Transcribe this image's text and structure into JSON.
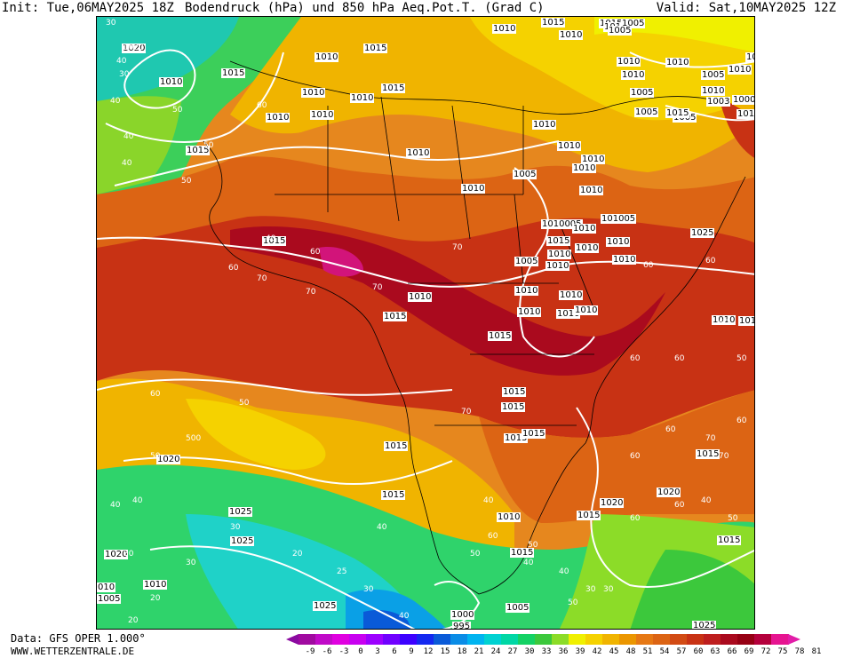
{
  "header": {
    "init": "Init: Tue,06MAY2025 18Z",
    "title": "Bodendruck (hPa) und 850 hPa Aeq.Pot.T. (Grad C)",
    "valid": "Valid: Sat,10MAY2025 12Z"
  },
  "footer": {
    "source": "Data: GFS OPER 1.000°",
    "site": "WWW.WETTERZENTRALE.DE"
  },
  "legend": {
    "arrow_left_color": "#8b0aa0",
    "arrow_right_color": "#e21da8",
    "colors": [
      "#a00aa0",
      "#c00ac8",
      "#e000e0",
      "#c800f0",
      "#9c00ff",
      "#7000ff",
      "#3c00ff",
      "#1428f0",
      "#0a5ad8",
      "#0a8ce6",
      "#00b4f0",
      "#00d2d2",
      "#00d7a5",
      "#14d264",
      "#3cc83c",
      "#8cdc28",
      "#f0f000",
      "#f5d200",
      "#f0b400",
      "#eb9600",
      "#e67814",
      "#dc6414",
      "#d24b14",
      "#c83214",
      "#be1e1e",
      "#aa0a1e",
      "#960014",
      "#b4003c",
      "#e61490"
    ],
    "ticks": [
      "-9",
      "-6",
      "-3",
      "0",
      "3",
      "6",
      "9",
      "12",
      "15",
      "18",
      "21",
      "24",
      "27",
      "30",
      "33",
      "36",
      "39",
      "42",
      "45",
      "48",
      "51",
      "54",
      "57",
      "60",
      "63",
      "66",
      "69",
      "72",
      "75",
      "78",
      "81"
    ]
  },
  "map": {
    "pressure_labels": [
      {
        "t": "1020"
      },
      {
        "t": "1010"
      },
      {
        "t": "1015"
      },
      {
        "t": "1015"
      },
      {
        "t": "1010"
      },
      {
        "t": "1010"
      },
      {
        "t": "1010"
      },
      {
        "t": "1010"
      },
      {
        "t": "1015"
      },
      {
        "t": "1015"
      },
      {
        "t": "1010"
      },
      {
        "t": "1015"
      },
      {
        "t": "1015"
      },
      {
        "t": "1015"
      },
      {
        "t": "1010"
      },
      {
        "t": "1010"
      },
      {
        "t": "1010"
      },
      {
        "t": "1005"
      },
      {
        "t": "1010"
      },
      {
        "t": "1005"
      },
      {
        "t": "1010"
      },
      {
        "t": "1005"
      },
      {
        "t": "1010"
      },
      {
        "t": "1003"
      },
      {
        "t": "1000"
      },
      {
        "t": "1005"
      },
      {
        "t": "1005"
      },
      {
        "t": "1015"
      },
      {
        "t": "1010"
      },
      {
        "t": "1010"
      },
      {
        "t": "1010"
      },
      {
        "t": "1010"
      },
      {
        "t": "1010"
      },
      {
        "t": "1005"
      },
      {
        "t": "1010"
      },
      {
        "t": "1010"
      },
      {
        "t": "1010"
      },
      {
        "t": "1010"
      },
      {
        "t": "1010005"
      },
      {
        "t": "1010"
      },
      {
        "t": "1015"
      },
      {
        "t": "1010"
      },
      {
        "t": "1010"
      },
      {
        "t": "1005"
      },
      {
        "t": "1010"
      },
      {
        "t": "1010"
      },
      {
        "t": "1010"
      },
      {
        "t": "1010"
      },
      {
        "t": "1010"
      },
      {
        "t": "1010"
      },
      {
        "t": "1015"
      },
      {
        "t": "1010"
      },
      {
        "t": "1015"
      },
      {
        "t": "1015"
      },
      {
        "t": "1015"
      },
      {
        "t": "1015"
      },
      {
        "t": "1015"
      },
      {
        "t": "1015"
      },
      {
        "t": "1015"
      },
      {
        "t": "1010"
      },
      {
        "t": "1015"
      },
      {
        "t": "1020"
      },
      {
        "t": "1020"
      },
      {
        "t": "1025"
      },
      {
        "t": "1015"
      },
      {
        "t": "1020"
      },
      {
        "t": "1010"
      },
      {
        "t": "1025"
      },
      {
        "t": "1015"
      },
      {
        "t": "1025"
      },
      {
        "t": "1020"
      },
      {
        "t": "1005"
      },
      {
        "t": "1015"
      },
      {
        "t": "1025"
      },
      {
        "t": "1000"
      },
      {
        "t": "995"
      },
      {
        "t": "1005"
      },
      {
        "t": "1005"
      },
      {
        "t": "010"
      },
      {
        "t": "1005"
      },
      {
        "t": "1025"
      },
      {
        "t": "1015"
      },
      {
        "t": "1010"
      },
      {
        "t": "1010"
      },
      {
        "t": "101005"
      },
      {
        "t": "1010"
      },
      {
        "t": "101"
      }
    ],
    "temp_labels": [
      "30",
      "1020",
      "40",
      "30",
      "40",
      "50",
      "60",
      "40",
      "50",
      "40",
      "50",
      "40",
      "60",
      "60",
      "70",
      "70",
      "70",
      "70",
      "60",
      "60",
      "60",
      "60",
      "50",
      "50",
      "500",
      "50",
      "40",
      "40",
      "30",
      "30",
      "20",
      "20",
      "40",
      "50",
      "60",
      "60",
      "70",
      "70",
      "60",
      "60",
      "60",
      "50",
      "40",
      "40",
      "30",
      "50",
      "30",
      "40",
      "60",
      "50",
      "70",
      "60",
      "50",
      "40",
      "30",
      "20",
      "25",
      "30",
      "40"
    ]
  }
}
